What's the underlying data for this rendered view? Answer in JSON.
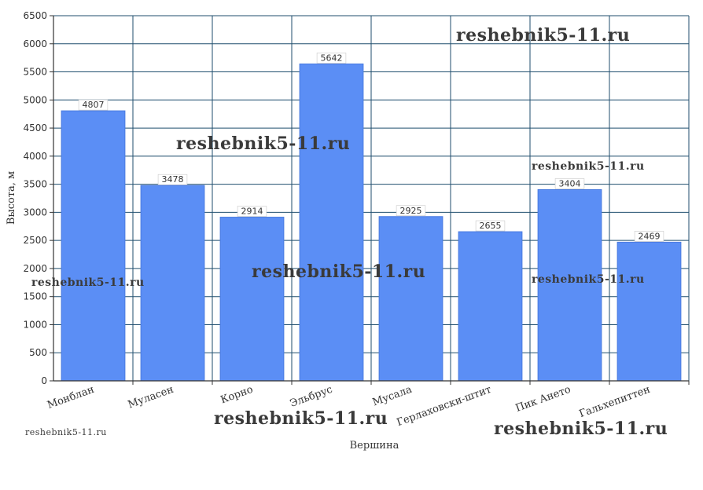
{
  "chart_data": {
    "type": "bar",
    "xlabel": "Вершина",
    "ylabel": "Высота, м",
    "categories": [
      "Монблан",
      "Муласен",
      "Корно",
      "Эльбрус",
      "Мусала",
      "Герлаховски-штит",
      "Пик Ането",
      "Гальхепиттен"
    ],
    "values": [
      4807,
      3478,
      2914,
      5642,
      2925,
      2655,
      3404,
      2469
    ],
    "data_labels": [
      "4807",
      "3478",
      "2914",
      "5642",
      "2925",
      "2655",
      "3404",
      "2469"
    ],
    "y_ticks": [
      "0",
      "500",
      "1000",
      "1500",
      "2000",
      "2500",
      "3000",
      "3500",
      "4000",
      "4500",
      "5000",
      "5500",
      "6000",
      "6500"
    ],
    "ylim": [
      0,
      6500
    ],
    "grid": true,
    "legend": "none",
    "bar_color": "#5b8ef5",
    "grid_color": "#1f4e6e"
  },
  "watermarks": [
    "reshebnik5-11.ru",
    "reshebnik5-11.ru",
    "reshebnik5-11.ru",
    "reshebnik5-11.ru",
    "reshebnik5-11.ru",
    "reshebnik5-11.ru",
    "reshebnik5-11.ru",
    "reshebnik5-11.ru",
    "reshebnik5-11.ru"
  ]
}
